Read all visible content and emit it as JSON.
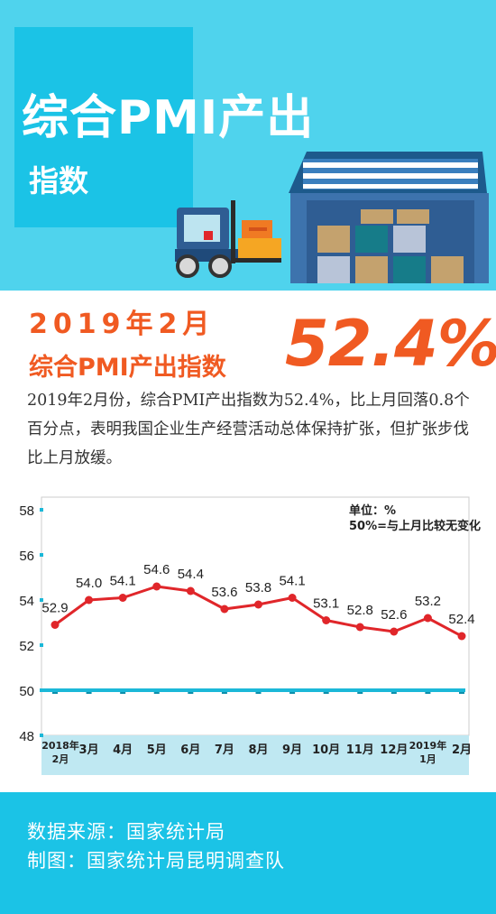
{
  "header": {
    "title": "综合PMI产出",
    "subtitle": "指数"
  },
  "headline": {
    "month": "2019年2月",
    "indicator": "综合PMI产出指数",
    "value": "52.4%"
  },
  "description": "2019年2月份，综合PMI产出指数为52.4%，比上月回落0.8个百分点，表明我国企业生产经营活动总体保持扩张，但扩张步伐比上月放缓。",
  "legend": {
    "unit": "单位：%",
    "note": "50%=与上月比较无变化"
  },
  "chart_data": {
    "type": "line",
    "categories": [
      [
        "2018年",
        "2月"
      ],
      [
        "3月"
      ],
      [
        "4月"
      ],
      [
        "5月"
      ],
      [
        "6月"
      ],
      [
        "7月"
      ],
      [
        "8月"
      ],
      [
        "9月"
      ],
      [
        "10月"
      ],
      [
        "11月"
      ],
      [
        "12月"
      ],
      [
        "2019年",
        "1月"
      ],
      [
        "2月"
      ]
    ],
    "values": [
      52.9,
      54.0,
      54.1,
      54.6,
      54.4,
      53.6,
      53.8,
      54.1,
      53.1,
      52.8,
      52.6,
      53.2,
      52.4
    ],
    "data_labels": [
      "52.9",
      "54.0",
      "54.1",
      "54.6",
      "54.4",
      "53.6",
      "53.8",
      "54.1",
      "53.1",
      "52.8",
      "52.6",
      "53.2",
      "52.4"
    ],
    "reference_line": 50,
    "yticks": [
      48,
      50,
      52,
      54,
      56,
      58
    ],
    "ylim": [
      48,
      58
    ],
    "series_color": "#e0262a",
    "reference_color": "#1bb8d8",
    "xlabel": "",
    "ylabel": ""
  },
  "footer": {
    "source": "数据来源：国家统计局",
    "credit": "制图：国家统计局昆明调查队"
  },
  "colors": {
    "header_bg": "#4fd3ed",
    "accent_box": "#1bc3e6",
    "headline": "#f05a22",
    "footer_bg": "#1bc3e6",
    "axis_band": "#bfe8f2"
  }
}
